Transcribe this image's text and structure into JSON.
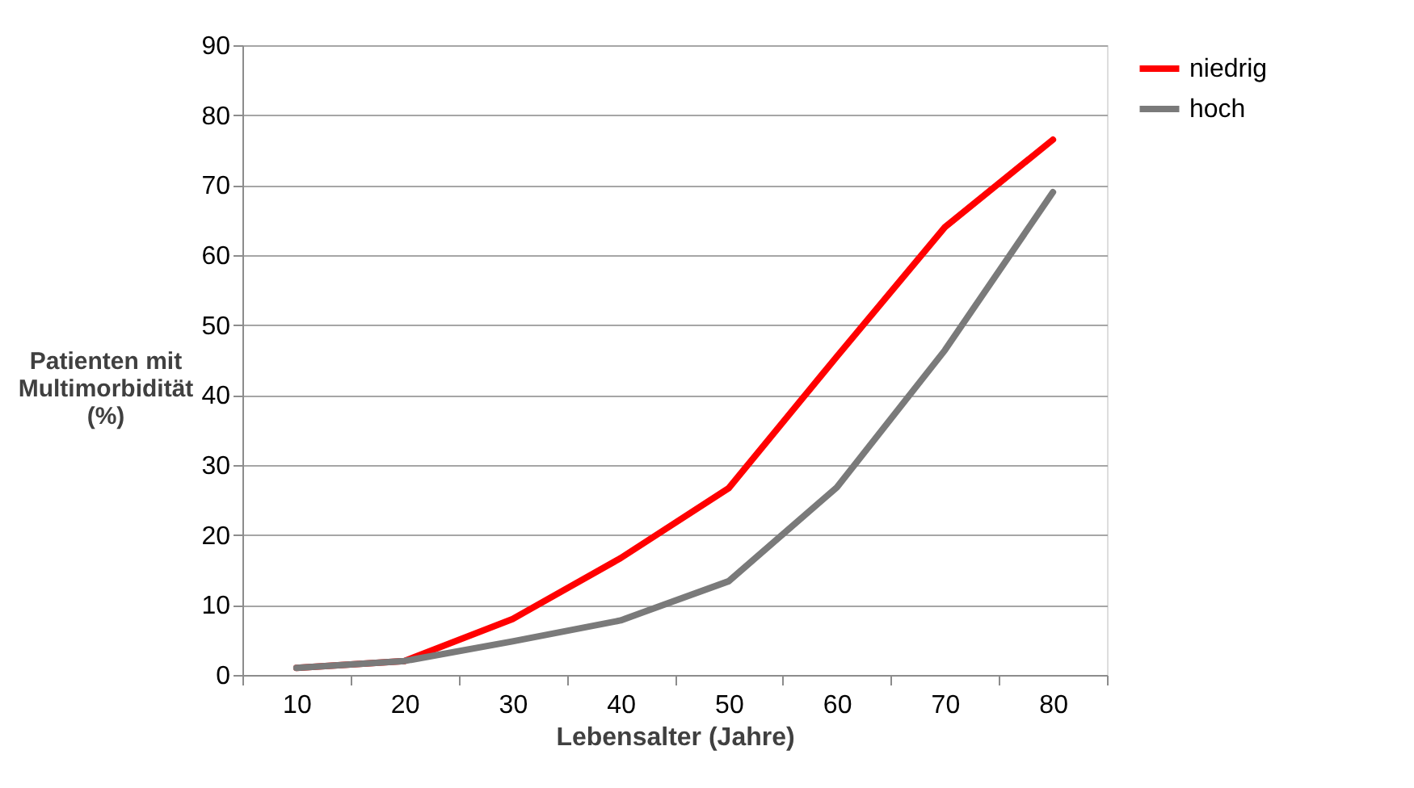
{
  "chart_data": {
    "type": "line",
    "xlabel": "Lebensalter (Jahre)",
    "ylabel": "Patienten mit\nMultimorbidität\n(%)",
    "categories": [
      "10",
      "20",
      "30",
      "40",
      "50",
      "60",
      "70",
      "80"
    ],
    "series": [
      {
        "name": "niedrig",
        "color": "#ff0000",
        "values": [
          1,
          2,
          8,
          16.7,
          26.7,
          45.5,
          64,
          76.5
        ]
      },
      {
        "name": "hoch",
        "color": "#7a7a7a",
        "values": [
          1,
          2,
          4.8,
          7.8,
          13.4,
          26.8,
          46.4,
          69
        ]
      }
    ],
    "ylim": [
      0,
      90
    ],
    "yticks": [
      0,
      10,
      20,
      30,
      40,
      50,
      60,
      70,
      80,
      90
    ],
    "grid": "y",
    "legend": "right",
    "marker": "none",
    "line_style": "solid"
  }
}
